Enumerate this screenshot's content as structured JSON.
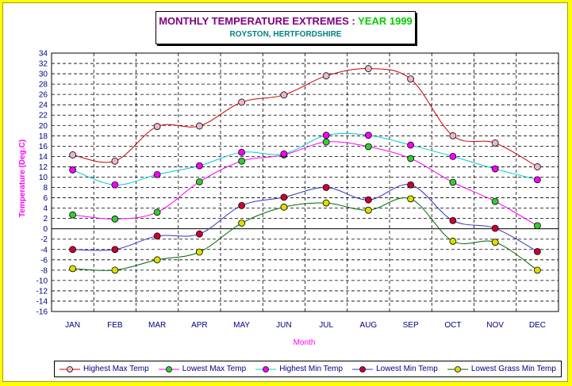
{
  "chart_data": {
    "type": "line",
    "title": "MONTHLY TEMPERATURE EXTREMES :",
    "title_year": "YEAR 1999",
    "subtitle": "ROYSTON, HERTFORDSHIRE",
    "xlabel": "Month",
    "ylabel": "Temperature (Deg.C)",
    "ylim": [
      -16,
      34
    ],
    "ytick_step": 2,
    "grid": "dashed",
    "legend_position": "bottom",
    "categories": [
      "JAN",
      "FEB",
      "MAR",
      "APR",
      "MAY",
      "JUN",
      "JUL",
      "AUG",
      "SEP",
      "OCT",
      "NOV",
      "DEC"
    ],
    "series": [
      {
        "name": "Highest Max Temp",
        "line_color": "#cc0000",
        "marker_color": "#f0b4d0",
        "values": [
          14.3,
          13.1,
          19.8,
          19.9,
          24.5,
          25.9,
          29.6,
          31.0,
          29.0,
          18.0,
          16.6,
          12.0
        ]
      },
      {
        "name": "Lowest Max Temp",
        "line_color": "#ff00ff",
        "marker_color": "#33cc33",
        "values": [
          2.7,
          1.9,
          3.2,
          9.1,
          13.1,
          14.3,
          16.8,
          15.9,
          13.6,
          9.0,
          5.3,
          0.6
        ]
      },
      {
        "name": "Highest Min Temp",
        "line_color": "#00cccc",
        "marker_color": "#ff00ff",
        "values": [
          11.4,
          8.5,
          10.5,
          12.2,
          14.8,
          14.5,
          18.1,
          18.1,
          16.2,
          14.0,
          11.6,
          9.5
        ]
      },
      {
        "name": "Lowest Min Temp",
        "line_color": "#3333cc",
        "marker_color": "#cc0033",
        "values": [
          -4.0,
          -4.0,
          -1.4,
          -1.0,
          4.5,
          6.1,
          8.0,
          5.6,
          8.5,
          1.6,
          0.1,
          -4.4
        ]
      },
      {
        "name": "Lowest Grass Min Temp",
        "line_color": "#006600",
        "marker_color": "#dddd00",
        "values": [
          -7.7,
          -8.0,
          -6.0,
          -4.5,
          1.1,
          4.2,
          5.0,
          3.6,
          5.8,
          -2.4,
          -2.6,
          -8.0
        ]
      }
    ]
  },
  "colors": {
    "background": "#ffff00",
    "axis_text": "#000080",
    "ylabel": "#ff00ff",
    "xlabel": "#ff00ff"
  }
}
